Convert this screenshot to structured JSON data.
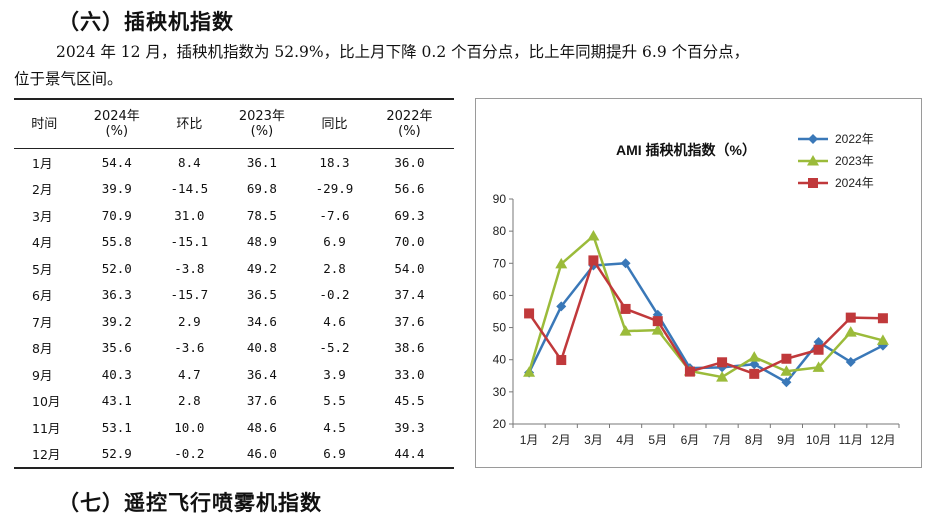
{
  "section6": {
    "title": "（六）插秧机指数"
  },
  "paragraph": {
    "line1": "2024 年 12 月，插秧机指数为 52.9%，比上月下降 0.2 个百分点，比上年同期提升 6.9 个百分点，",
    "line2": "位于景气区间。"
  },
  "table": {
    "headers": [
      "时间",
      "2024年\n(%)",
      "环比",
      "2023年\n(%)",
      "同比",
      "2022年\n(%)"
    ],
    "rows": [
      [
        "1月",
        "54.4",
        "8.4",
        "36.1",
        "18.3",
        "36.0"
      ],
      [
        "2月",
        "39.9",
        "-14.5",
        "69.8",
        "-29.9",
        "56.6"
      ],
      [
        "3月",
        "70.9",
        "31.0",
        "78.5",
        "-7.6",
        "69.3"
      ],
      [
        "4月",
        "55.8",
        "-15.1",
        "48.9",
        "6.9",
        "70.0"
      ],
      [
        "5月",
        "52.0",
        "-3.8",
        "49.2",
        "2.8",
        "54.0"
      ],
      [
        "6月",
        "36.3",
        "-15.7",
        "36.5",
        "-0.2",
        "37.4"
      ],
      [
        "7月",
        "39.2",
        "2.9",
        "34.6",
        "4.6",
        "37.6"
      ],
      [
        "8月",
        "35.6",
        "-3.6",
        "40.8",
        "-5.2",
        "38.6"
      ],
      [
        "9月",
        "40.3",
        "4.7",
        "36.4",
        "3.9",
        "33.0"
      ],
      [
        "10月",
        "43.1",
        "2.8",
        "37.6",
        "5.5",
        "45.5"
      ],
      [
        "11月",
        "53.1",
        "10.0",
        "48.6",
        "4.5",
        "39.3"
      ],
      [
        "12月",
        "52.9",
        "-0.2",
        "46.0",
        "6.9",
        "44.4"
      ]
    ]
  },
  "chart_data": {
    "type": "line",
    "title": "AMI 插秧机指数（%）",
    "categories": [
      "1月",
      "2月",
      "3月",
      "4月",
      "5月",
      "6月",
      "7月",
      "8月",
      "9月",
      "10月",
      "11月",
      "12月"
    ],
    "ylim": [
      20,
      90
    ],
    "yticks": [
      20,
      30,
      40,
      50,
      60,
      70,
      80,
      90
    ],
    "grid": false,
    "legend_position": "top-right",
    "series": [
      {
        "name": "2022年",
        "color": "#3a78b8",
        "marker": "diamond",
        "values": [
          36.0,
          56.6,
          69.3,
          70.0,
          54.0,
          37.4,
          37.6,
          38.6,
          33.0,
          45.5,
          39.3,
          44.4
        ]
      },
      {
        "name": "2023年",
        "color": "#9bbb3a",
        "marker": "triangle",
        "values": [
          36.1,
          69.8,
          78.5,
          48.9,
          49.2,
          36.5,
          34.6,
          40.8,
          36.4,
          37.6,
          48.6,
          46.0
        ]
      },
      {
        "name": "2024年",
        "color": "#c0393b",
        "marker": "square",
        "values": [
          54.4,
          39.9,
          70.9,
          55.8,
          52.0,
          36.3,
          39.2,
          35.6,
          40.3,
          43.1,
          53.1,
          52.9
        ]
      }
    ]
  },
  "section7": {
    "title": "（七）遥控飞行喷雾机指数"
  }
}
